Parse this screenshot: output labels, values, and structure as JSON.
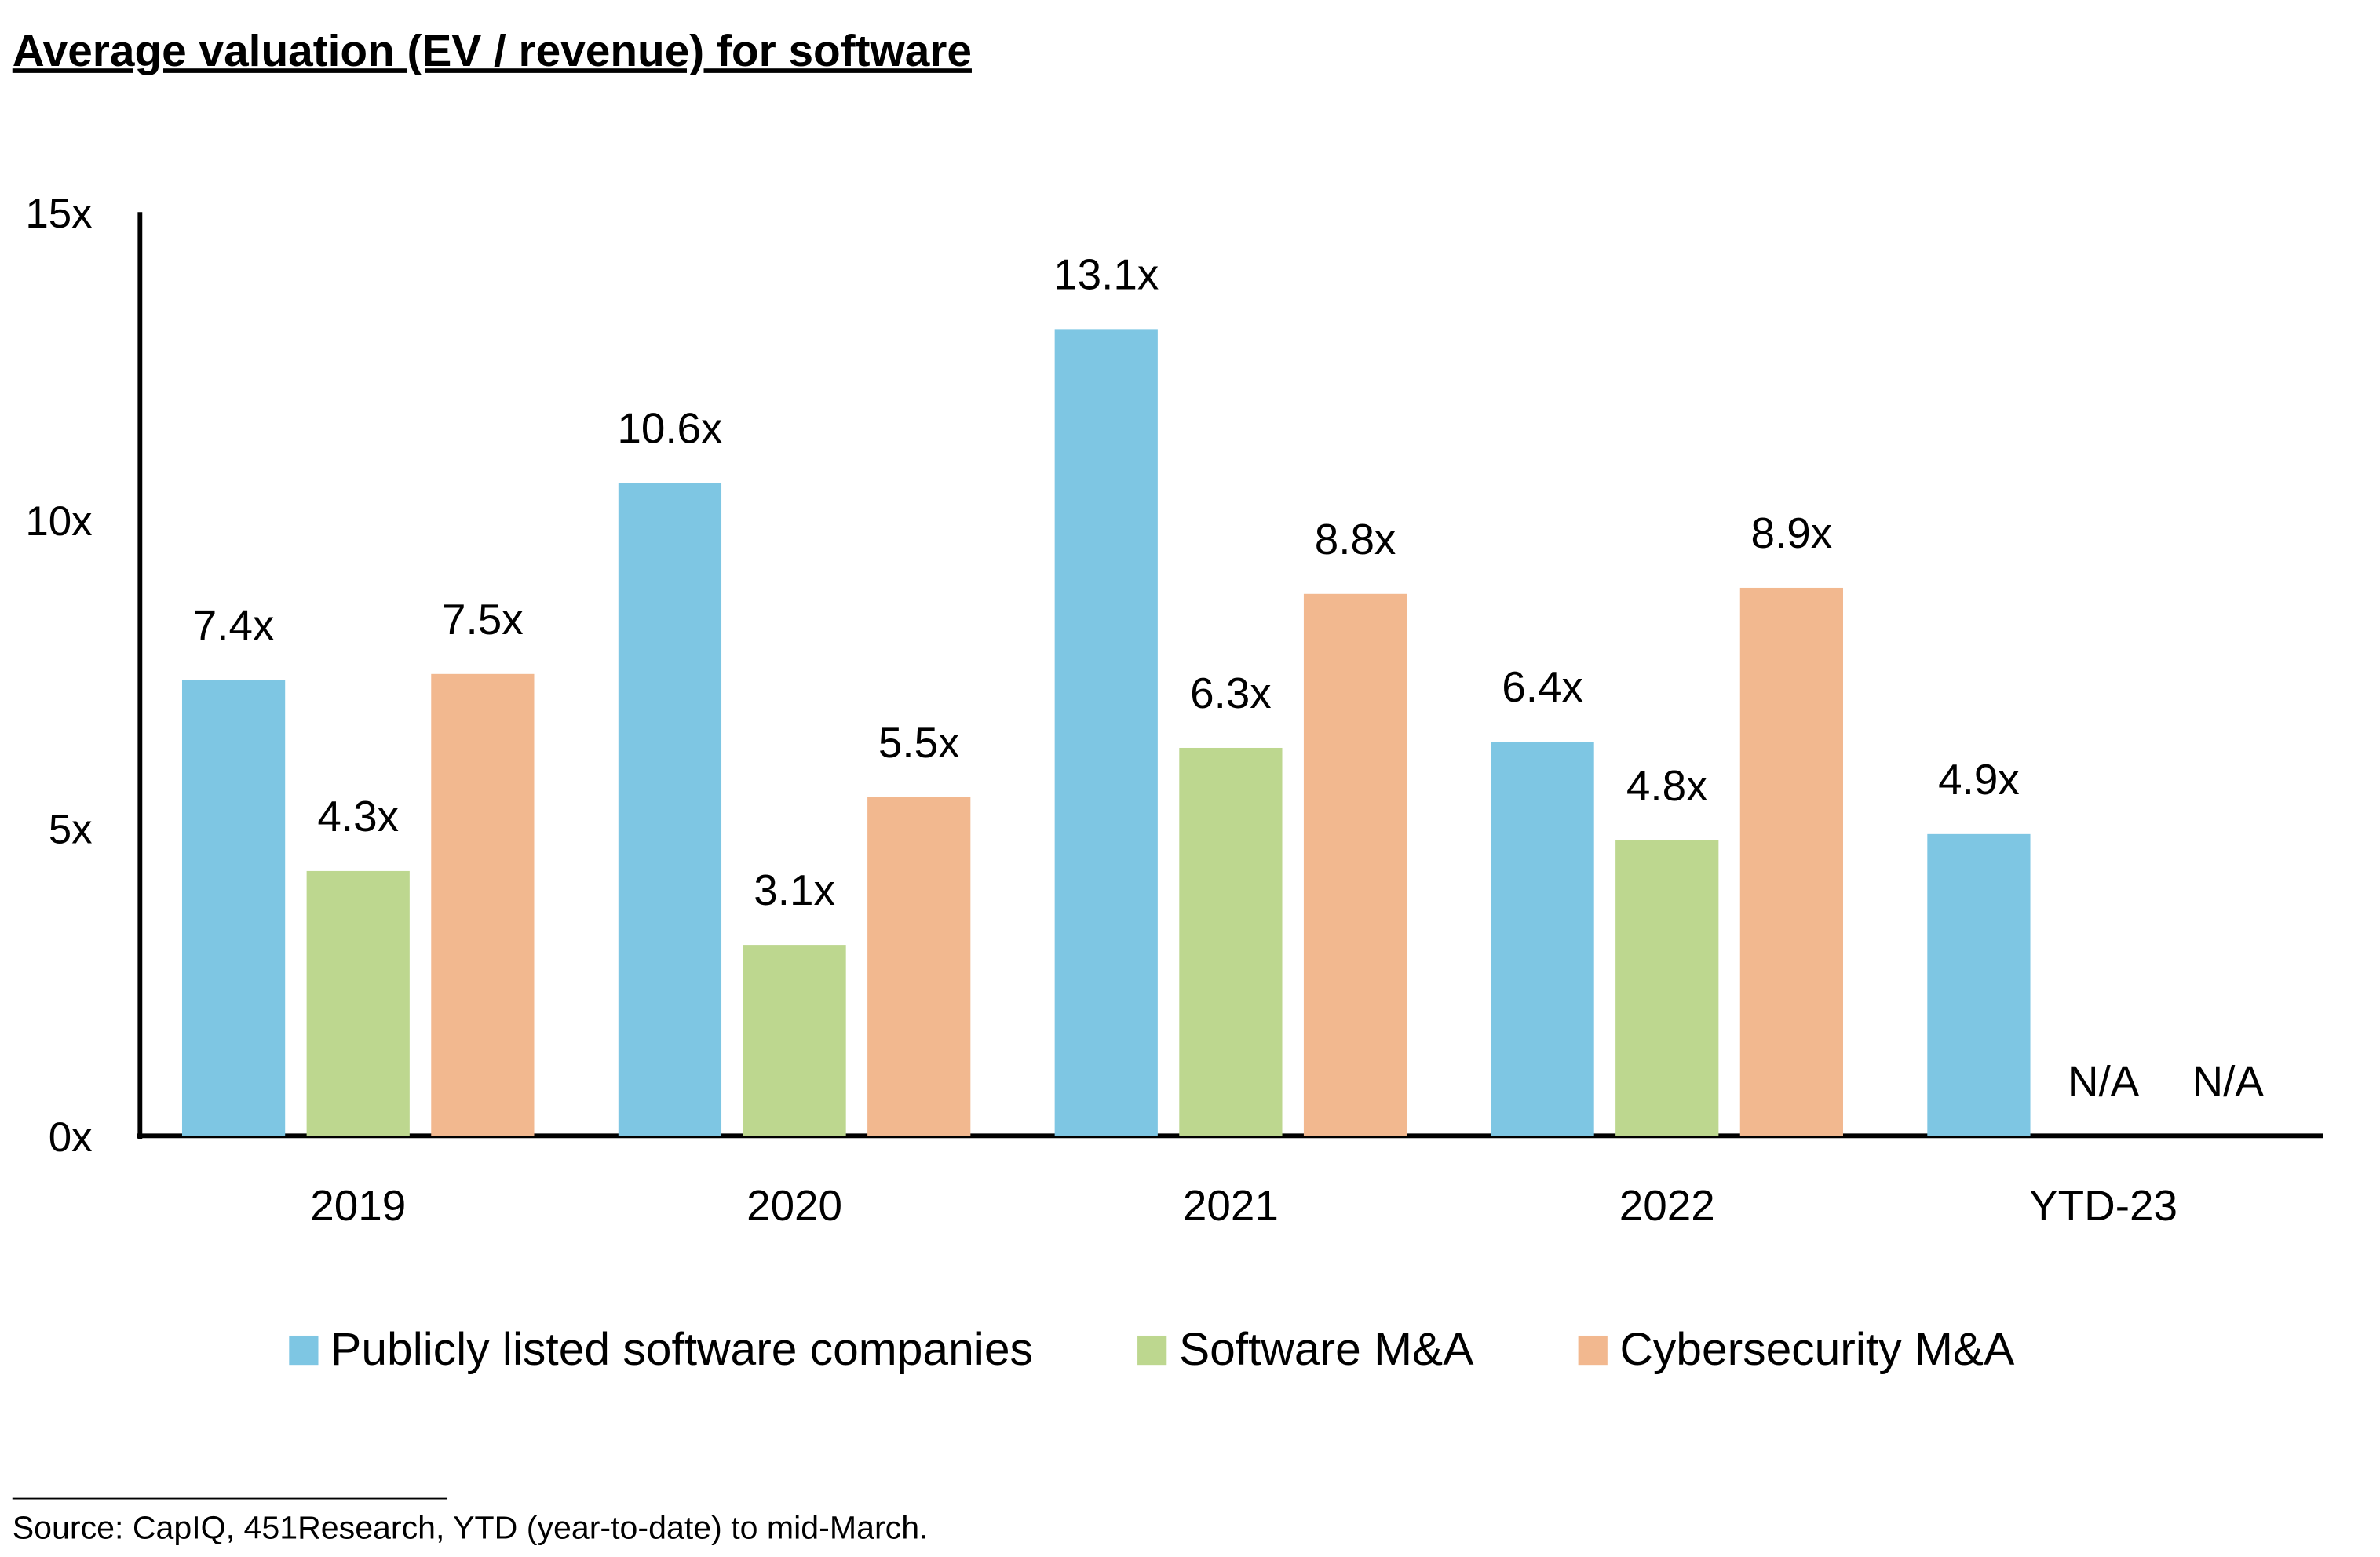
{
  "chart_data": {
    "type": "bar",
    "title": "Average valuation (EV / revenue) for software",
    "categories": [
      "2019",
      "2020",
      "2021",
      "2022",
      "YTD-23"
    ],
    "series": [
      {
        "name": "Publicly listed software companies",
        "color": "#7ec6e3",
        "values": [
          7.4,
          10.6,
          13.1,
          6.4,
          4.9
        ],
        "value_labels": [
          "7.4x",
          "10.6x",
          "13.1x",
          "6.4x",
          "4.9x"
        ]
      },
      {
        "name": "Software M&A",
        "color": "#bdd78f",
        "values": [
          4.3,
          3.1,
          6.3,
          4.8,
          null
        ],
        "value_labels": [
          "4.3x",
          "3.1x",
          "6.3x",
          "4.8x",
          "N/A"
        ]
      },
      {
        "name": "Cybersecurity M&A",
        "color": "#f2b88f",
        "values": [
          7.5,
          5.5,
          8.8,
          8.9,
          null
        ],
        "value_labels": [
          "7.5x",
          "5.5x",
          "8.8x",
          "8.9x",
          "N/A"
        ]
      }
    ],
    "ylim": [
      0,
      15
    ],
    "yticks": [
      {
        "value": 0,
        "label": "0x"
      },
      {
        "value": 5,
        "label": "5x"
      },
      {
        "value": 10,
        "label": "10x"
      },
      {
        "value": 15,
        "label": "15x"
      }
    ],
    "grid": false,
    "legend": "bottom",
    "source": "Source:  CapIQ, 451Research, YTD (year-to-date) to mid-March."
  }
}
